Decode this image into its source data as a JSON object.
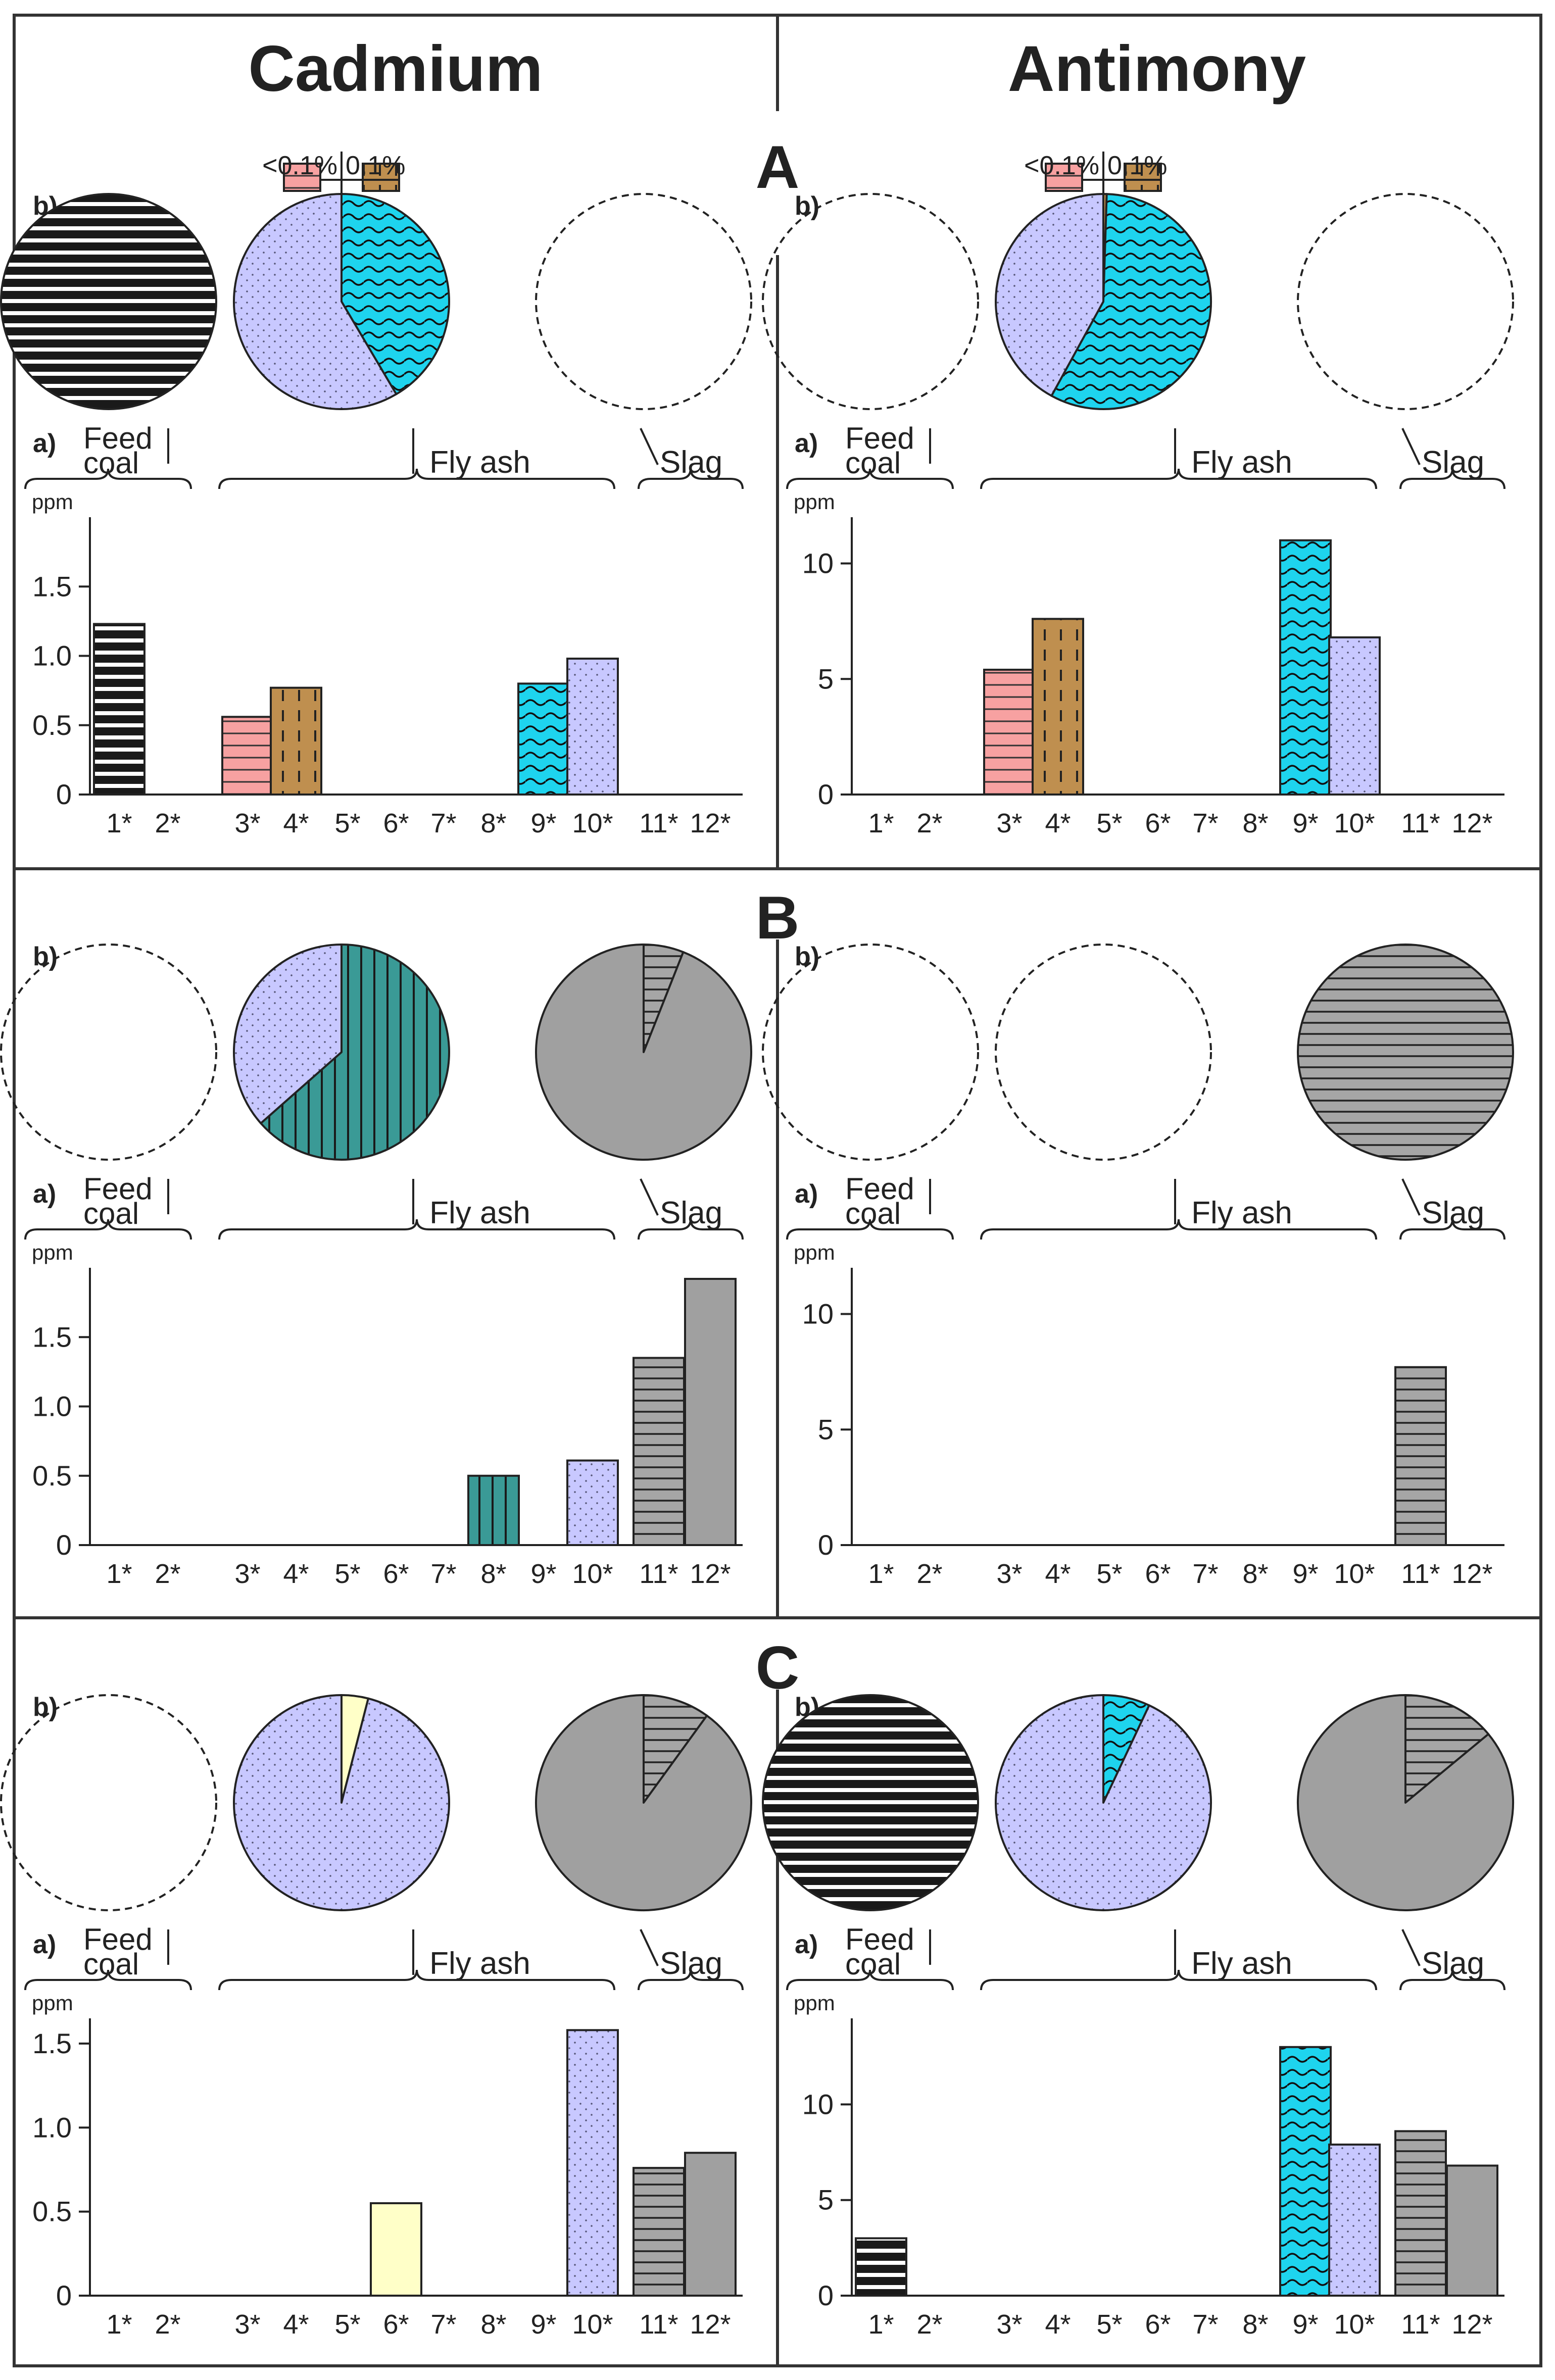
{
  "headers": {
    "left": "Cadmium",
    "right": "Antimony"
  },
  "section_labels": [
    "A",
    "B",
    "C"
  ],
  "panel_labels": {
    "pies": "b)",
    "bars": "a)"
  },
  "group_labels": {
    "feed_line1": "Feed",
    "feed_line2": "coal",
    "fly_ash": "Fly ash",
    "slag": "Slag"
  },
  "unit": "ppm",
  "categories": [
    "1*",
    "2*",
    "3*",
    "4*",
    "5*",
    "6*",
    "7*",
    "8*",
    "9*",
    "10*",
    "11*",
    "12*"
  ],
  "legend": {
    "lt": "<0.1%",
    "eq": "0.1%"
  },
  "patterns": {
    "1": {
      "name": "black-horizontal-lines",
      "fill": "#ffffff",
      "ink": "#1a1a1a"
    },
    "3": {
      "name": "pink-horizontal-lines",
      "fill": "#f7a1a1",
      "ink": "#333333"
    },
    "4": {
      "name": "brown-dashed-vertical",
      "fill": "#bf8f4f",
      "ink": "#222222"
    },
    "6": {
      "name": "pale-yellow-solid",
      "fill": "#ffffc8",
      "ink": "#333333"
    },
    "8": {
      "name": "teal-vertical-lines",
      "fill": "#3a9a96",
      "ink": "#1a1a1a"
    },
    "9": {
      "name": "cyan-wavy",
      "fill": "#1ed4ee",
      "ink": "#111111"
    },
    "10": {
      "name": "lavender-dotted",
      "fill": "#c8c8ff",
      "ink": "#555577"
    },
    "11": {
      "name": "gray-horizontal-lines",
      "fill": "#a6a6a6",
      "ink": "#222222"
    },
    "12": {
      "name": "gray-solid",
      "fill": "#a0a0a0",
      "ink": "#333333"
    }
  },
  "chart_data": [
    {
      "type": "bar",
      "section": "A",
      "element": "Cadmium",
      "ylabel": "ppm",
      "ylim": [
        0,
        2
      ],
      "yticks": [
        "0",
        "0.5",
        "1.0",
        "1.5"
      ],
      "tick_values": [
        0,
        0.5,
        1.0,
        1.5
      ],
      "values": [
        1.23,
        0,
        0.56,
        0.77,
        0,
        0,
        0,
        0,
        0.8,
        0.98,
        0,
        0
      ],
      "pies": [
        {
          "group": "Feed coal",
          "slices": [
            {
              "cat": "1",
              "value": 100
            }
          ]
        },
        {
          "group": "Fly ash",
          "slices": [
            {
              "cat": "9",
              "value": 41.5
            },
            {
              "cat": "10",
              "value": 58.5
            }
          ],
          "legend": true
        },
        {
          "group": "Slag",
          "slices": []
        }
      ]
    },
    {
      "type": "bar",
      "section": "A",
      "element": "Antimony",
      "ylabel": "ppm",
      "ylim": [
        0,
        12
      ],
      "yticks": [
        "0",
        "5",
        "10"
      ],
      "tick_values": [
        0,
        5,
        10
      ],
      "values": [
        0,
        0,
        5.4,
        7.6,
        0,
        0,
        0,
        0,
        11.0,
        6.8,
        0,
        0
      ],
      "pies": [
        {
          "group": "Feed coal",
          "slices": []
        },
        {
          "group": "Fly ash",
          "slices": [
            {
              "cat": "4",
              "value": 0.5
            },
            {
              "cat": "9",
              "value": 57.5
            },
            {
              "cat": "10",
              "value": 42.0
            }
          ],
          "legend": true
        },
        {
          "group": "Slag",
          "slices": []
        }
      ]
    },
    {
      "type": "bar",
      "section": "B",
      "element": "Cadmium",
      "ylabel": "ppm",
      "ylim": [
        0,
        2
      ],
      "yticks": [
        "0",
        "0.5",
        "1.0",
        "1.5"
      ],
      "tick_values": [
        0,
        0.5,
        1.0,
        1.5
      ],
      "values": [
        0,
        0,
        0,
        0,
        0,
        0,
        0,
        0.5,
        0,
        0.61,
        1.35,
        1.92
      ],
      "pies": [
        {
          "group": "Feed coal",
          "slices": []
        },
        {
          "group": "Fly ash",
          "slices": [
            {
              "cat": "8",
              "value": 63.5
            },
            {
              "cat": "10",
              "value": 36.5
            }
          ]
        },
        {
          "group": "Slag",
          "slices": [
            {
              "cat": "11",
              "value": 6
            },
            {
              "cat": "12",
              "value": 94
            }
          ]
        }
      ]
    },
    {
      "type": "bar",
      "section": "B",
      "element": "Antimony",
      "ylabel": "ppm",
      "ylim": [
        0,
        12
      ],
      "yticks": [
        "0",
        "5",
        "10"
      ],
      "tick_values": [
        0,
        5,
        10
      ],
      "values": [
        0,
        0,
        0,
        0,
        0,
        0,
        0,
        0,
        0,
        0,
        7.7,
        0
      ],
      "pies": [
        {
          "group": "Feed coal",
          "slices": []
        },
        {
          "group": "Fly ash",
          "slices": []
        },
        {
          "group": "Slag",
          "slices": [
            {
              "cat": "11",
              "value": 100
            }
          ]
        }
      ]
    },
    {
      "type": "bar",
      "section": "C",
      "element": "Cadmium",
      "ylabel": "ppm",
      "ylim": [
        0,
        1.65
      ],
      "yticks": [
        "0",
        "0.5",
        "1.0",
        "1.5"
      ],
      "tick_values": [
        0,
        0.5,
        1.0,
        1.5
      ],
      "values": [
        0,
        0,
        0,
        0,
        0,
        0.55,
        0,
        0,
        0,
        1.58,
        0.76,
        0.85
      ],
      "pies": [
        {
          "group": "Feed coal",
          "slices": []
        },
        {
          "group": "Fly ash",
          "slices": [
            {
              "cat": "6",
              "value": 4
            },
            {
              "cat": "10",
              "value": 96
            }
          ]
        },
        {
          "group": "Slag",
          "slices": [
            {
              "cat": "11",
              "value": 10
            },
            {
              "cat": "12",
              "value": 90
            }
          ]
        }
      ]
    },
    {
      "type": "bar",
      "section": "C",
      "element": "Antimony",
      "ylabel": "ppm",
      "ylim": [
        0,
        14.5
      ],
      "yticks": [
        "0",
        "5",
        "10"
      ],
      "tick_values": [
        0,
        5,
        10
      ],
      "values": [
        3.0,
        0,
        0,
        0,
        0,
        0,
        0,
        0,
        13.0,
        7.9,
        8.6,
        6.8
      ],
      "pies": [
        {
          "group": "Feed coal",
          "slices": [
            {
              "cat": "1",
              "value": 100
            }
          ]
        },
        {
          "group": "Fly ash",
          "slices": [
            {
              "cat": "9",
              "value": 7
            },
            {
              "cat": "10",
              "value": 93
            }
          ]
        },
        {
          "group": "Slag",
          "slices": [
            {
              "cat": "11",
              "value": 14
            },
            {
              "cat": "12",
              "value": 86
            }
          ]
        }
      ]
    }
  ]
}
